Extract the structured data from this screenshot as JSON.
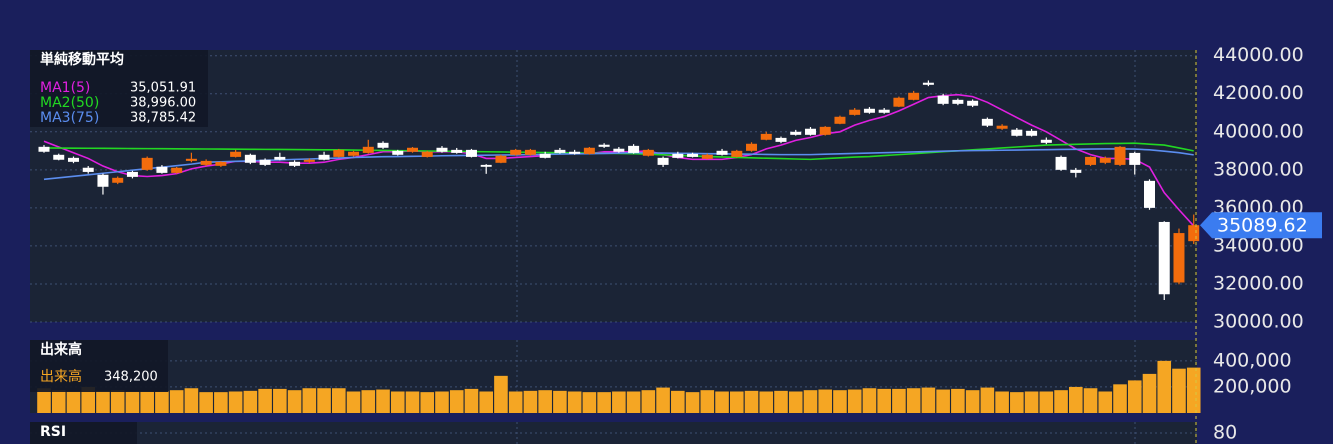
{
  "chart_data": [
    {
      "type": "candlestick",
      "title": "単純移動平均",
      "ylim": [
        30000,
        44300
      ],
      "yticks": [
        {
          "value": 30000,
          "label": "30000.00"
        },
        {
          "value": 32000,
          "label": "32000.00"
        },
        {
          "value": 34000,
          "label": "34000.00"
        },
        {
          "value": 36000,
          "label": "36000.00"
        },
        {
          "value": 38000,
          "label": "38000.00"
        },
        {
          "value": 40000,
          "label": "40000.00"
        },
        {
          "value": 42000,
          "label": "42000.00"
        },
        {
          "value": 44000,
          "label": "44000.00"
        }
      ],
      "grid": true,
      "up_color": "#f26c0d",
      "down_color": "#ffffff",
      "last_price_color": "#3b7cf0",
      "candles": {
        "open": [
          39210,
          38790,
          38630,
          38110,
          37740,
          37320,
          37890,
          38000,
          38160,
          37840,
          38470,
          38260,
          38210,
          38680,
          38790,
          38530,
          38680,
          38420,
          38420,
          38790,
          38680,
          38740,
          38890,
          39420,
          39000,
          38950,
          38680,
          39160,
          39050,
          39050,
          38260,
          38370,
          38790,
          38790,
          38840,
          39050,
          38950,
          38840,
          39320,
          39110,
          39260,
          38740,
          38630,
          38840,
          38840,
          38580,
          39000,
          38680,
          39000,
          39580,
          39680,
          40000,
          40160,
          39840,
          40420,
          40890,
          41210,
          41160,
          41320,
          41680,
          42580,
          41900,
          41680,
          41630,
          40680,
          40160,
          40110,
          40050,
          39580,
          38680,
          38000,
          38260,
          38370,
          38260,
          38890,
          37420,
          35260,
          32077,
          34250
        ],
        "high": [
          39300,
          38850,
          38700,
          38200,
          37800,
          37650,
          37950,
          38700,
          38250,
          38150,
          38900,
          38550,
          38450,
          39050,
          38850,
          38600,
          38900,
          38500,
          38600,
          38950,
          39100,
          39000,
          39580,
          39500,
          39050,
          39200,
          39000,
          39250,
          39150,
          39100,
          38300,
          38800,
          39100,
          39100,
          38950,
          39150,
          39050,
          39200,
          39400,
          39200,
          39350,
          39100,
          38700,
          38950,
          38900,
          38850,
          39100,
          39050,
          39450,
          40000,
          39750,
          40100,
          40250,
          40300,
          40850,
          41250,
          41300,
          41250,
          41850,
          42150,
          42700,
          42000,
          41750,
          41700,
          40750,
          40400,
          40200,
          40150,
          39700,
          38750,
          38100,
          38700,
          38700,
          39250,
          38950,
          37500,
          35300,
          34911,
          35650
        ],
        "low": [
          38900,
          38500,
          38350,
          37800,
          36700,
          37250,
          37550,
          37950,
          37800,
          37800,
          38400,
          38200,
          38150,
          38650,
          38300,
          38200,
          38500,
          38150,
          38350,
          38500,
          38650,
          38700,
          38850,
          39100,
          38750,
          38900,
          38650,
          38900,
          38850,
          38650,
          37790,
          38350,
          38750,
          38750,
          38600,
          38850,
          38800,
          38800,
          39150,
          38900,
          38850,
          38700,
          38150,
          38600,
          38650,
          38550,
          38750,
          38650,
          38950,
          39550,
          39400,
          39800,
          39800,
          39800,
          40400,
          40850,
          40950,
          40950,
          41300,
          41650,
          42400,
          41400,
          41400,
          41300,
          40250,
          40100,
          39750,
          39750,
          39350,
          37950,
          37600,
          38200,
          38300,
          38200,
          37750,
          35900,
          31156,
          31981,
          34100
        ],
        "close": [
          38950,
          38530,
          38420,
          37890,
          37110,
          37580,
          37630,
          38630,
          37840,
          38110,
          38580,
          38470,
          38420,
          38950,
          38370,
          38260,
          38530,
          38210,
          38530,
          38530,
          39050,
          38950,
          39210,
          39160,
          38790,
          39160,
          38950,
          38950,
          38890,
          38680,
          38160,
          38740,
          39050,
          39050,
          38630,
          38890,
          38840,
          39160,
          39210,
          38950,
          38890,
          39050,
          38260,
          38630,
          38680,
          38790,
          38790,
          39000,
          39370,
          39890,
          39470,
          39840,
          39840,
          40260,
          40790,
          41160,
          41000,
          41000,
          41790,
          42050,
          42470,
          41470,
          41470,
          41370,
          40320,
          40320,
          39790,
          39790,
          39420,
          38000,
          37840,
          38680,
          38630,
          39210,
          38260,
          36000,
          31458,
          34675,
          35089.62
        ]
      },
      "series": [
        {
          "name": "MA1(5)",
          "color": "#e020e0",
          "value_label": "35,051.91",
          "values": [
            39500,
            39200,
            38900,
            38600,
            38200,
            37900,
            37700,
            37650,
            37700,
            37800,
            38050,
            38200,
            38300,
            38450,
            38450,
            38400,
            38400,
            38350,
            38350,
            38400,
            38550,
            38650,
            38800,
            38950,
            38950,
            39000,
            38950,
            38950,
            38950,
            38850,
            38600,
            38600,
            38650,
            38700,
            38750,
            38950,
            38850,
            38850,
            38950,
            38950,
            38950,
            39000,
            38800,
            38650,
            38550,
            38550,
            38550,
            38650,
            38800,
            39100,
            39300,
            39550,
            39700,
            39900,
            40000,
            40350,
            40600,
            40800,
            41100,
            41450,
            41800,
            41900,
            41950,
            41850,
            41550,
            41150,
            40750,
            40350,
            40000,
            39550,
            39100,
            38800,
            38600,
            38600,
            38550,
            38150,
            36800,
            35900,
            35051.91
          ]
        },
        {
          "name": "MA2(50)",
          "color": "#22d822",
          "value_label": "38,996.00",
          "values": [
            39150,
            39145,
            39140,
            39135,
            39130,
            39125,
            39120,
            39115,
            39110,
            39105,
            39100,
            39095,
            39090,
            39085,
            39080,
            39075,
            39070,
            39065,
            39060,
            39055,
            39050,
            39040,
            39030,
            39020,
            39010,
            39000,
            38990,
            38980,
            38970,
            38960,
            38950,
            38940,
            38930,
            38920,
            38910,
            38900,
            38890,
            38880,
            38870,
            38860,
            38850,
            38820,
            38790,
            38760,
            38730,
            38700,
            38680,
            38650,
            38630,
            38610,
            38590,
            38570,
            38550,
            38590,
            38630,
            38670,
            38700,
            38750,
            38800,
            38850,
            38900,
            38950,
            39000,
            39050,
            39100,
            39150,
            39200,
            39250,
            39300,
            39320,
            39340,
            39360,
            39380,
            39390,
            39400,
            39350,
            39300,
            39150,
            38996.0
          ]
        },
        {
          "name": "MA3(75)",
          "color": "#5b8def",
          "value_label": "38,785.42",
          "values": [
            37500,
            37580,
            37660,
            37740,
            37820,
            37900,
            37980,
            38060,
            38140,
            38220,
            38300,
            38400,
            38420,
            38450,
            38470,
            38500,
            38520,
            38550,
            38570,
            38600,
            38620,
            38650,
            38670,
            38690,
            38700,
            38710,
            38720,
            38740,
            38750,
            38760,
            38770,
            38780,
            38790,
            38800,
            38810,
            38830,
            38840,
            38850,
            38860,
            38880,
            38900,
            38890,
            38880,
            38870,
            38860,
            38850,
            38840,
            38830,
            38820,
            38810,
            38800,
            38800,
            38800,
            38820,
            38840,
            38860,
            38880,
            38900,
            38920,
            38940,
            38960,
            38980,
            39000,
            39010,
            39020,
            39030,
            39040,
            39050,
            39060,
            39070,
            39080,
            39090,
            39100,
            39100,
            39090,
            39050,
            38980,
            38900,
            38785.42
          ]
        }
      ]
    },
    {
      "type": "bar",
      "title": "出来高",
      "ylim": [
        0,
        560000
      ],
      "yticks": [
        {
          "value": 200000,
          "label": "200,000"
        },
        {
          "value": 400000,
          "label": "400,000"
        }
      ],
      "grid": true,
      "series": [
        {
          "name": "出来高",
          "color": "#f5a623",
          "value_label": "348,200",
          "values": [
            190000,
            175000,
            165000,
            200000,
            170000,
            175000,
            165000,
            165000,
            165000,
            175000,
            190000,
            160000,
            160000,
            165000,
            170000,
            185000,
            185000,
            175000,
            190000,
            190000,
            190000,
            165000,
            175000,
            180000,
            165000,
            165000,
            160000,
            165000,
            175000,
            185000,
            165000,
            285000,
            165000,
            170000,
            175000,
            170000,
            165000,
            160000,
            160000,
            165000,
            165000,
            175000,
            195000,
            170000,
            160000,
            175000,
            165000,
            165000,
            170000,
            165000,
            170000,
            165000,
            175000,
            180000,
            175000,
            180000,
            190000,
            185000,
            185000,
            190000,
            195000,
            180000,
            185000,
            175000,
            195000,
            165000,
            160000,
            165000,
            165000,
            175000,
            200000,
            190000,
            165000,
            220000,
            250000,
            300000,
            400000,
            340000,
            348200
          ]
        }
      ]
    },
    {
      "type": "line",
      "title": "RSI",
      "ylim": [
        0,
        100
      ],
      "yticks": [
        80
      ],
      "grid": true
    }
  ]
}
